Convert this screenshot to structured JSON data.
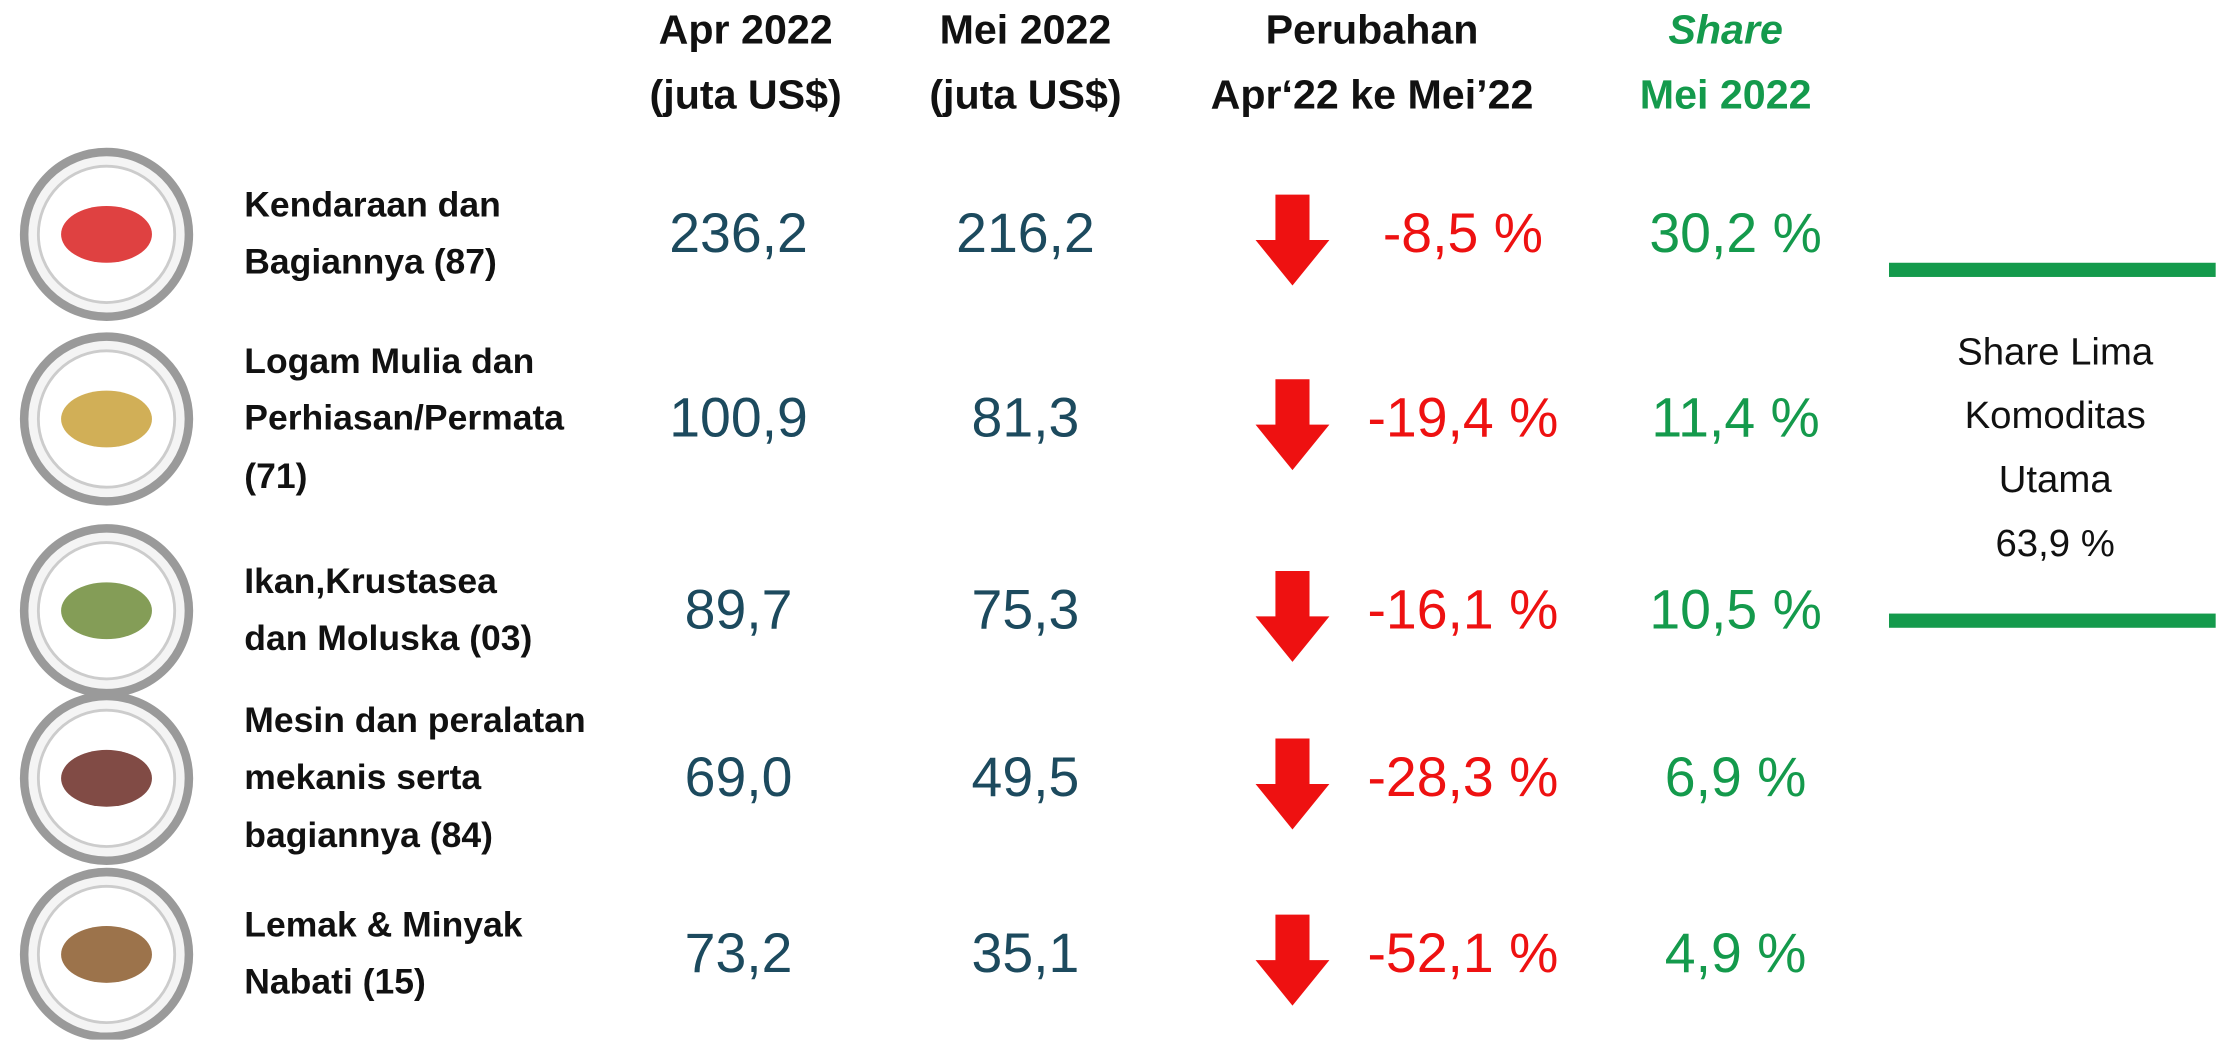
{
  "header": {
    "apr": [
      "Apr 2022",
      "(juta US$)"
    ],
    "mei": [
      "Mei 2022",
      "(juta US$)"
    ],
    "change": [
      "Perubahan",
      "Apr‘22 ke Mei’22"
    ],
    "share": [
      "Share",
      "Mei 2022"
    ]
  },
  "rows": [
    {
      "label": [
        "Kendaraan dan",
        "Bagiannya (87)"
      ],
      "apr": "236,2",
      "mei": "216,2",
      "change": "-8,5 %",
      "share": "30,2 %"
    },
    {
      "label": [
        "Logam Mulia dan",
        "Perhiasan/Permata",
        "(71)"
      ],
      "apr": "100,9",
      "mei": "81,3",
      "change": "-19,4 %",
      "share": "11,4 %"
    },
    {
      "label": [
        "Ikan,Krustasea",
        "dan Moluska (03)"
      ],
      "apr": "89,7",
      "mei": "75,3",
      "change": "-16,1 %",
      "share": "10,5 %"
    },
    {
      "label": [
        "Mesin dan peralatan",
        "mekanis serta",
        "bagiannya  (84)"
      ],
      "apr": "69,0",
      "mei": "49,5",
      "change": "-28,3 %",
      "share": "6,9 %"
    },
    {
      "label": [
        "Lemak & Minyak",
        "Nabati (15)"
      ],
      "apr": "73,2",
      "mei": "35,1",
      "change": "-52,1 %",
      "share": "4,9 %"
    }
  ],
  "side": [
    "Share Lima",
    "Komoditas",
    "Utama",
    "63,9 %"
  ]
}
